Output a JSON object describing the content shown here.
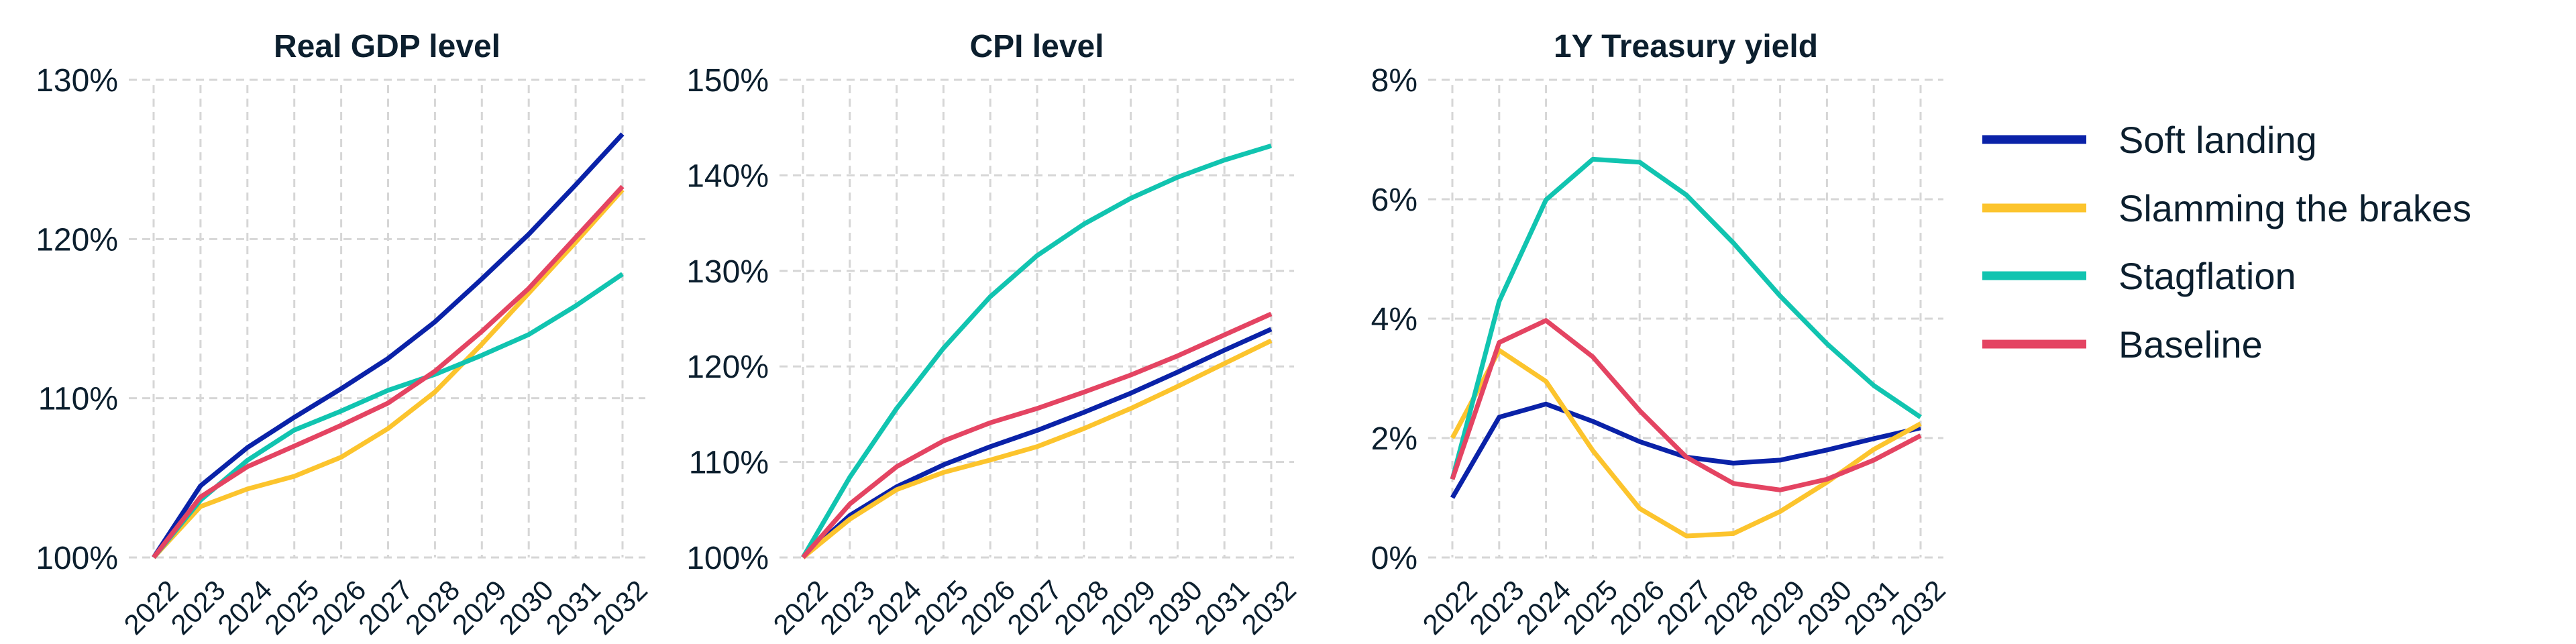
{
  "series_styles": [
    {
      "name": "Soft landing",
      "color": "#0a22a8"
    },
    {
      "name": "Slamming the brakes",
      "color": "#fcc42d"
    },
    {
      "name": "Stagflation",
      "color": "#11c4b0"
    },
    {
      "name": "Baseline",
      "color": "#e44462"
    }
  ],
  "legend": {
    "placement": "right",
    "items": [
      "Soft landing",
      "Slamming the brakes",
      "Stagflation",
      "Baseline"
    ]
  },
  "chart_data": [
    {
      "type": "line",
      "title": "Real GDP level",
      "xlabel": "",
      "ylabel": "",
      "x": [
        "2022",
        "2023",
        "2024",
        "2025",
        "2026",
        "2027",
        "2028",
        "2029",
        "2030",
        "2031",
        "2032"
      ],
      "ylim": [
        100,
        130
      ],
      "yticks": [
        100,
        110,
        120,
        130
      ],
      "ytick_labels": [
        "100%",
        "110%",
        "120%",
        "130%"
      ],
      "grid": true,
      "series": [
        {
          "name": "Soft landing",
          "values": [
            100,
            104.5,
            106.9,
            108.8,
            110.6,
            112.5,
            114.8,
            117.5,
            120.3,
            123.4,
            126.6
          ]
        },
        {
          "name": "Slamming the brakes",
          "values": [
            100,
            103.2,
            104.3,
            105.1,
            106.3,
            108.1,
            110.4,
            113.4,
            116.6,
            119.8,
            123.1
          ]
        },
        {
          "name": "Stagflation",
          "values": [
            100,
            103.6,
            106.1,
            108.0,
            109.2,
            110.5,
            111.5,
            112.7,
            114.0,
            115.8,
            117.8
          ]
        },
        {
          "name": "Baseline",
          "values": [
            100,
            103.8,
            105.7,
            107.0,
            108.3,
            109.7,
            111.7,
            114.2,
            116.9,
            120.1,
            123.3
          ]
        }
      ]
    },
    {
      "type": "line",
      "title": "CPI level",
      "xlabel": "",
      "ylabel": "",
      "x": [
        "2022",
        "2023",
        "2024",
        "2025",
        "2026",
        "2027",
        "2028",
        "2029",
        "2030",
        "2031",
        "2032"
      ],
      "ylim": [
        100,
        150
      ],
      "yticks": [
        100,
        110,
        120,
        130,
        140,
        150
      ],
      "ytick_labels": [
        "100%",
        "110%",
        "120%",
        "130%",
        "140%",
        "150%"
      ],
      "grid": true,
      "series": [
        {
          "name": "Soft landing",
          "values": [
            100,
            104.4,
            107.4,
            109.7,
            111.6,
            113.3,
            115.2,
            117.2,
            119.4,
            121.7,
            123.9
          ]
        },
        {
          "name": "Slamming the brakes",
          "values": [
            100,
            104.0,
            107.1,
            108.9,
            110.2,
            111.6,
            113.5,
            115.6,
            117.9,
            120.3,
            122.7
          ]
        },
        {
          "name": "Stagflation",
          "values": [
            100,
            108.4,
            115.6,
            121.9,
            127.3,
            131.6,
            134.9,
            137.6,
            139.8,
            141.6,
            143.1
          ]
        },
        {
          "name": "Baseline",
          "values": [
            100,
            105.6,
            109.5,
            112.2,
            114.1,
            115.6,
            117.3,
            119.1,
            121.1,
            123.3,
            125.5
          ]
        }
      ]
    },
    {
      "type": "line",
      "title": "1Y Treasury yield",
      "xlabel": "",
      "ylabel": "",
      "x": [
        "2022",
        "2023",
        "2024",
        "2025",
        "2026",
        "2027",
        "2028",
        "2029",
        "2030",
        "2031",
        "2032"
      ],
      "ylim": [
        0,
        8
      ],
      "yticks": [
        0,
        2,
        4,
        6,
        8
      ],
      "ytick_labels": [
        "0%",
        "2%",
        "4%",
        "6%",
        "8%"
      ],
      "grid": true,
      "series": [
        {
          "name": "Soft landing",
          "values": [
            1.0,
            2.35,
            2.57,
            2.28,
            1.94,
            1.68,
            1.58,
            1.63,
            1.8,
            1.99,
            2.17
          ]
        },
        {
          "name": "Slamming the brakes",
          "values": [
            2.0,
            3.47,
            2.95,
            1.79,
            0.82,
            0.36,
            0.4,
            0.77,
            1.26,
            1.81,
            2.24
          ]
        },
        {
          "name": "Stagflation",
          "values": [
            1.31,
            4.29,
            5.99,
            6.67,
            6.62,
            6.07,
            5.27,
            4.38,
            3.58,
            2.88,
            2.35
          ]
        },
        {
          "name": "Baseline",
          "values": [
            1.31,
            3.6,
            3.97,
            3.36,
            2.46,
            1.68,
            1.24,
            1.13,
            1.31,
            1.63,
            2.04
          ]
        }
      ]
    }
  ]
}
